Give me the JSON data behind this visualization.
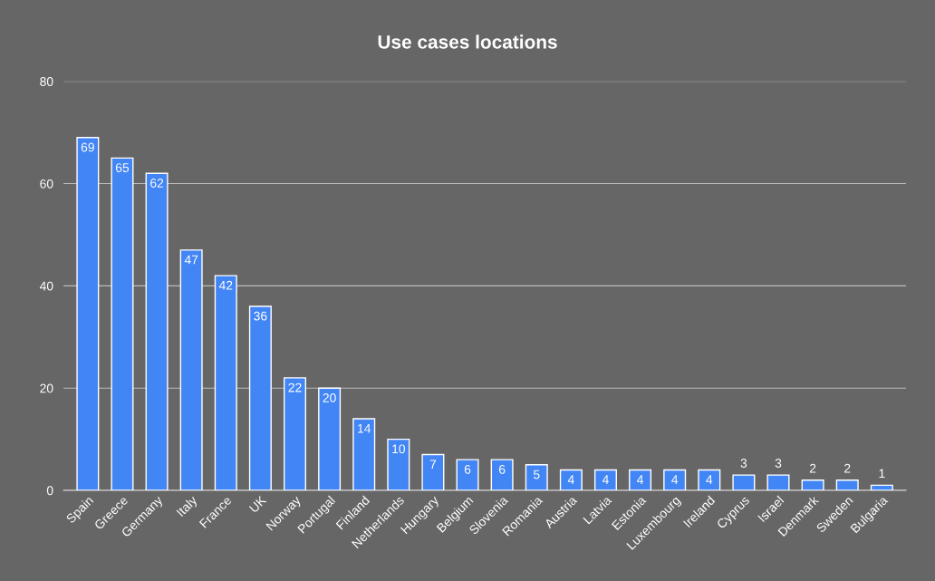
{
  "chart_data": {
    "type": "bar",
    "title": "Use cases locations",
    "categories": [
      "Spain",
      "Greece",
      "Germany",
      "Italy",
      "France",
      "UK",
      "Norway",
      "Portugal",
      "Finland",
      "Netherlands",
      "Hungary",
      "Belgium",
      "Slovenia",
      "Romania",
      "Austria",
      "Latvia",
      "Estonia",
      "Luxembourg",
      "Ireland",
      "Cyprus",
      "Israel",
      "Denmark",
      "Sweden",
      "Bulgaria"
    ],
    "values": [
      69,
      65,
      62,
      47,
      42,
      36,
      22,
      20,
      14,
      10,
      7,
      6,
      6,
      5,
      4,
      4,
      4,
      4,
      4,
      3,
      3,
      2,
      2,
      1
    ],
    "color": "#4285f4",
    "ylim": [
      0,
      80
    ],
    "yticks": [
      0,
      20,
      40,
      60,
      80
    ],
    "grid": "y",
    "data_labels": true
  }
}
